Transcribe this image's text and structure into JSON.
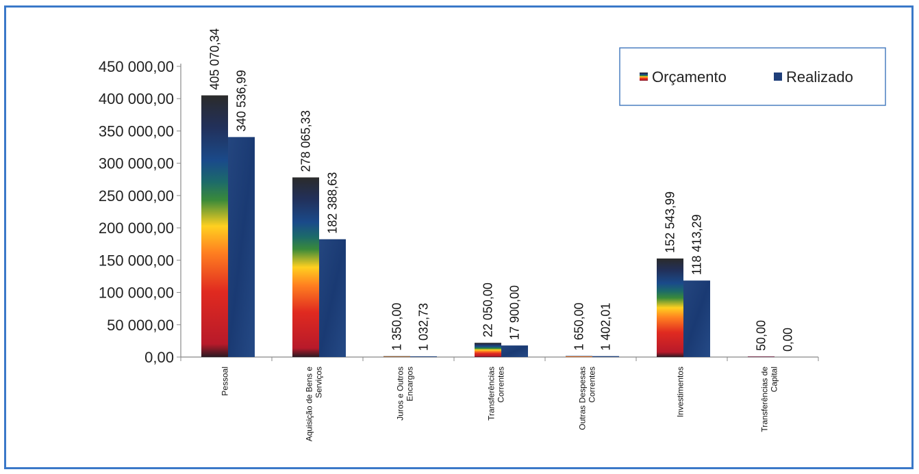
{
  "chart_data": {
    "type": "bar",
    "title": "",
    "xlabel": "",
    "ylabel": "",
    "ylim": [
      0,
      450000
    ],
    "yticks": [
      "0,00",
      "50 000,00",
      "100 000,00",
      "150 000,00",
      "200 000,00",
      "250 000,00",
      "300 000,00",
      "350 000,00",
      "400 000,00",
      "450 000,00"
    ],
    "categories": [
      [
        "Pessoal"
      ],
      [
        "Aquisição de Bens e",
        "Serviços"
      ],
      [
        "Juros e Outros",
        "Encargos"
      ],
      [
        "Transferências",
        "Correntes"
      ],
      [
        "Outras Despesas",
        "Correntes"
      ],
      [
        "Investimentos"
      ],
      [
        "Transferências de",
        "Capital"
      ]
    ],
    "series": [
      {
        "name": "Orçamento",
        "values": [
          405070.34,
          278065.33,
          1350.0,
          22050.0,
          1650.0,
          152543.99,
          50.0
        ],
        "labels": [
          "405 070,34",
          "278 065,33",
          "1 350,00",
          "22 050,00",
          "1 650,00",
          "152 543,99",
          "50,00"
        ]
      },
      {
        "name": "Realizado",
        "values": [
          340536.99,
          182388.63,
          1032.73,
          17900.0,
          1402.01,
          118413.29,
          0.0
        ],
        "labels": [
          "340 536,99",
          "182 388,63",
          "1 032,73",
          "17 900,00",
          "1 402,01",
          "118 413,29",
          "0,00"
        ]
      }
    ],
    "legend_position": "top-right",
    "grid": false,
    "colors": {
      "realizado": "#1f3f7a",
      "orcamento_gradient": [
        "#2a1a22",
        "#c8202a",
        "#ff7a1a",
        "#ffd21a",
        "#2e7a3a",
        "#1a4a8a",
        "#22305a",
        "#333333"
      ]
    }
  }
}
